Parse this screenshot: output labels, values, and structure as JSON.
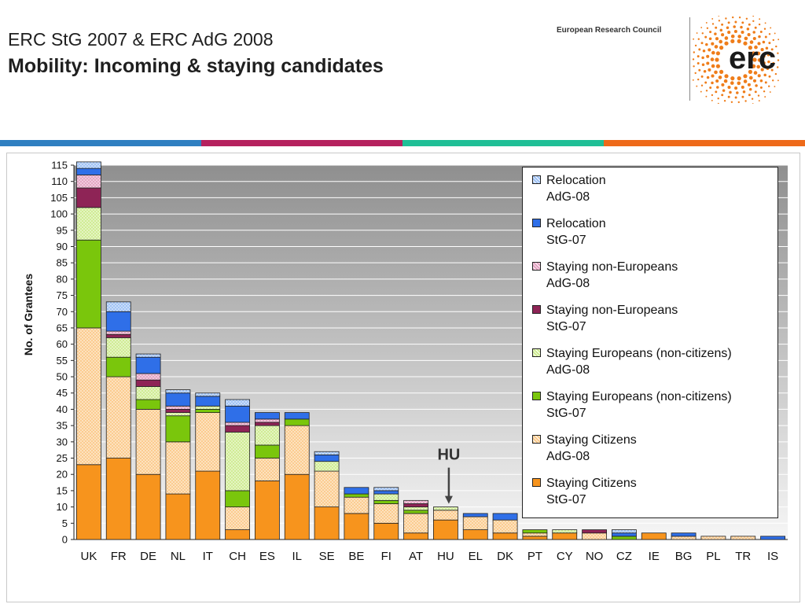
{
  "slide": {
    "title_line1": "ERC StG 2007 & ERC AdG 2008",
    "title_line2": "Mobility: Incoming & staying candidates",
    "org_name": "European Research Council",
    "logo_text": "erc",
    "band_colors": [
      "#2f7fc1",
      "#b5215e",
      "#1fbf96",
      "#ee6a1a"
    ]
  },
  "chart_data": {
    "type": "bar",
    "stacked": true,
    "ylabel": "No. of Grantees",
    "xlabel": "",
    "ylim": [
      0,
      115
    ],
    "ytick_step": 5,
    "grid": true,
    "legend_position": "right",
    "annotation": {
      "text": "HU",
      "target": "HU",
      "type": "arrow"
    },
    "categories": [
      "UK",
      "FR",
      "DE",
      "NL",
      "IT",
      "CH",
      "ES",
      "IL",
      "SE",
      "BE",
      "FI",
      "AT",
      "HU",
      "EL",
      "DK",
      "PT",
      "CY",
      "NO",
      "CZ",
      "IE",
      "BG",
      "PL",
      "TR",
      "IS"
    ],
    "series": [
      {
        "name": "Staying Citizens StG-07",
        "label1": "Staying Citizens",
        "label2": "StG-07",
        "color": "#f7941d",
        "pattern": "solid",
        "values": [
          23,
          25,
          20,
          14,
          21,
          3,
          18,
          20,
          10,
          8,
          5,
          2,
          6,
          3,
          2,
          1,
          2,
          0,
          0,
          2,
          0,
          0,
          0,
          0
        ]
      },
      {
        "name": "Staying Citizens AdG-08",
        "label1": "Staying Citizens",
        "label2": "AdG-08",
        "color": "#fbc98a",
        "pattern": "hatch",
        "values": [
          42,
          25,
          20,
          16,
          18,
          7,
          7,
          15,
          11,
          5,
          6,
          6,
          3,
          4,
          4,
          1,
          0,
          2,
          0,
          0,
          1,
          1,
          1,
          0
        ]
      },
      {
        "name": "Staying Europeans (non-citizens) StG-07",
        "label1": "Staying Europeans (non-citizens)",
        "label2": "StG-07",
        "color": "#7ac60c",
        "pattern": "solid",
        "values": [
          27,
          6,
          3,
          8,
          1,
          5,
          4,
          2,
          0,
          1,
          1,
          1,
          0,
          0,
          0,
          1,
          0,
          0,
          1,
          0,
          0,
          0,
          0,
          0
        ]
      },
      {
        "name": "Staying Europeans (non-citizens) AdG-08",
        "label1": "Staying Europeans (non-citizens)",
        "label2": "AdG-08",
        "color": "#cdeb8f",
        "pattern": "hatch",
        "values": [
          10,
          6,
          4,
          1,
          1,
          18,
          6,
          0,
          3,
          0,
          2,
          1,
          1,
          0,
          0,
          0,
          1,
          0,
          0,
          0,
          0,
          0,
          0,
          0
        ]
      },
      {
        "name": "Staying non-Europeans StG-07",
        "label1": "Staying non-Europeans",
        "label2": "StG-07",
        "color": "#8e2456",
        "pattern": "solid",
        "values": [
          6,
          1,
          2,
          1,
          0,
          2,
          1,
          0,
          0,
          0,
          0,
          1,
          0,
          0,
          0,
          0,
          0,
          1,
          0,
          0,
          0,
          0,
          0,
          0
        ]
      },
      {
        "name": "Staying non-Europeans AdG-08",
        "label1": "Staying non-Europeans",
        "label2": "AdG-08",
        "color": "#e3a0c0",
        "pattern": "hatch",
        "values": [
          4,
          1,
          2,
          1,
          0,
          1,
          1,
          0,
          0,
          0,
          0,
          1,
          0,
          0,
          0,
          0,
          0,
          0,
          0,
          0,
          0,
          0,
          0,
          0
        ]
      },
      {
        "name": "Relocation StG-07",
        "label1": "Relocation",
        "label2": "StG-07",
        "color": "#2f6fe8",
        "pattern": "solid",
        "values": [
          2,
          6,
          5,
          4,
          3,
          5,
          2,
          2,
          2,
          2,
          1,
          0,
          0,
          1,
          2,
          0,
          0,
          0,
          1,
          0,
          1,
          0,
          0,
          1
        ]
      },
      {
        "name": "Relocation AdG-08",
        "label1": "Relocation",
        "label2": "AdG-08",
        "color": "#9cc0f4",
        "pattern": "hatch",
        "values": [
          2,
          3,
          1,
          1,
          1,
          2,
          0,
          0,
          1,
          0,
          1,
          0,
          0,
          0,
          0,
          0,
          0,
          0,
          1,
          0,
          0,
          0,
          0,
          0
        ]
      }
    ]
  }
}
